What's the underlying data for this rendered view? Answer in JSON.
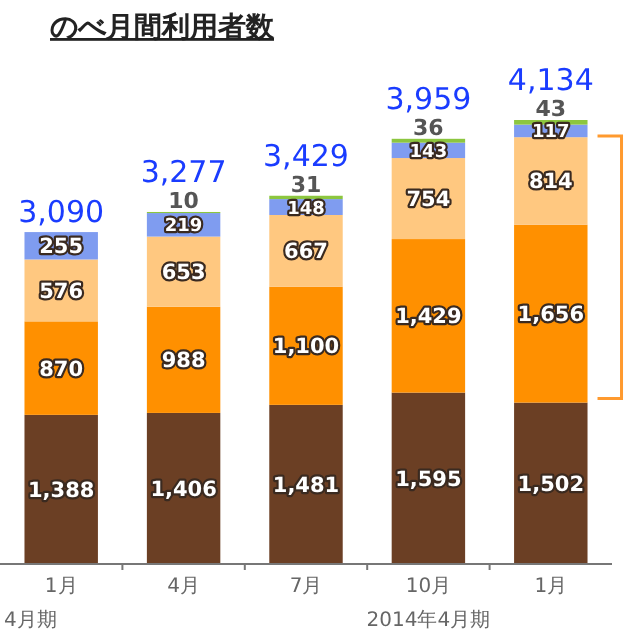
{
  "chart_data": {
    "type": "bar",
    "title": "のべ月間利用者数",
    "stacked": true,
    "categories": [
      "1月",
      "4月",
      "7月",
      "10月",
      "1月"
    ],
    "series": [
      {
        "color": "#6b3f24",
        "values": [
          1388,
          1406,
          1481,
          1595,
          1502
        ],
        "value_labels": [
          "1,388",
          "1,406",
          "1,481",
          "1,595",
          "1,502"
        ]
      },
      {
        "color": "#ff9000",
        "values": [
          870,
          988,
          1100,
          1429,
          1656
        ],
        "value_labels": [
          "870",
          "988",
          "1,100",
          "1,429",
          "1,656"
        ]
      },
      {
        "color": "#ffc880",
        "values": [
          576,
          653,
          667,
          754,
          814
        ],
        "value_labels": [
          "576",
          "653",
          "667",
          "754",
          "814"
        ]
      },
      {
        "color": "#7f9cf0",
        "values": [
          255,
          219,
          148,
          143,
          117
        ],
        "value_labels": [
          "255",
          "219",
          "148",
          "143",
          "117"
        ]
      },
      {
        "color": "#8cc63f",
        "values": [
          null,
          10,
          31,
          36,
          43
        ],
        "value_labels": [
          null,
          "10",
          "31",
          "36",
          "43"
        ]
      }
    ],
    "totals": [
      "3,090",
      "3,277",
      "3,429",
      "3,959",
      "4,134"
    ],
    "annotations": [
      "4月期",
      "2014年4月期"
    ]
  }
}
